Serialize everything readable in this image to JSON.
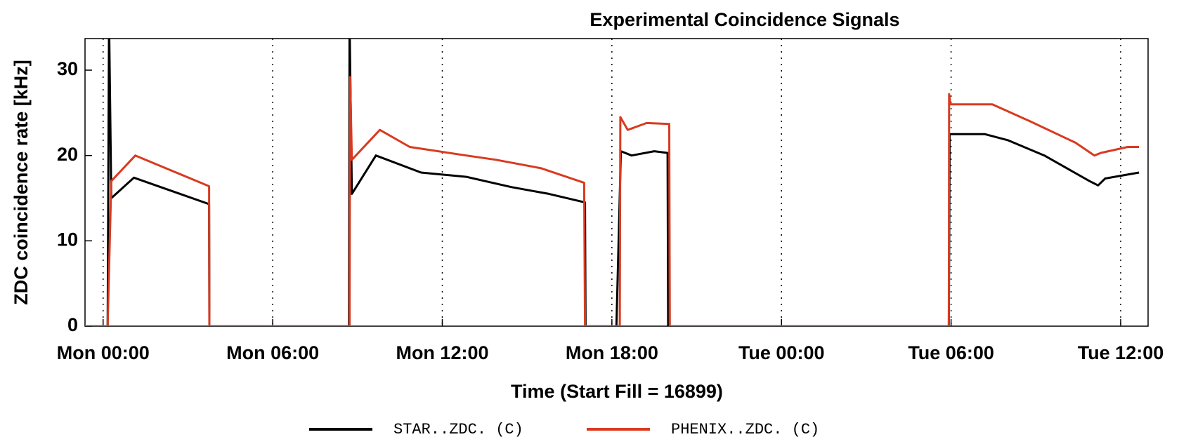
{
  "chart_data": {
    "type": "line",
    "title": "Experimental Coincidence Signals",
    "x_label": "Time (Start Fill = 16899)",
    "y_label": "ZDC coincidence rate [kHz]",
    "xlim": [
      -0.64,
      36.97
    ],
    "ylim": [
      0,
      33.7
    ],
    "xticks": [
      {
        "value": 0,
        "label": "Mon 00:00"
      },
      {
        "value": 6,
        "label": "Mon 06:00"
      },
      {
        "value": 12,
        "label": "Mon 12:00"
      },
      {
        "value": 18,
        "label": "Mon 18:00"
      },
      {
        "value": 24,
        "label": "Tue 00:00"
      },
      {
        "value": 30,
        "label": "Tue 06:00"
      },
      {
        "value": 36,
        "label": "Tue 12:00"
      }
    ],
    "yticks": [
      0,
      10,
      20,
      30
    ],
    "grid": "x-dotted",
    "legend": "bottom",
    "series": [
      {
        "name": "STAR..ZDC. (C)",
        "color": "#000000",
        "x": [
          -0.64,
          0.16,
          0.21,
          0.29,
          1.09,
          3.75,
          3.76,
          8.7,
          8.72,
          8.8,
          9.65,
          11.25,
          12.85,
          14.44,
          15.77,
          17.05,
          17.07,
          18.16,
          18.32,
          18.7,
          19.5,
          19.97,
          19.99,
          29.92,
          29.95,
          31.2,
          32.0,
          33.3,
          34.9,
          35.2,
          35.45,
          36.65
        ],
        "values": [
          0,
          0,
          36,
          15,
          17.4,
          14.3,
          0,
          0,
          36,
          15.5,
          20,
          18,
          17.5,
          16.3,
          15.5,
          14.5,
          0,
          0,
          20.5,
          20,
          20.5,
          20.3,
          0,
          0,
          22.5,
          22.5,
          21.8,
          20,
          17,
          16.5,
          17.3,
          18
        ]
      },
      {
        "name": "PHENIX..ZDC. (C)",
        "color": "#d93a1f",
        "x": [
          -0.64,
          0.16,
          0.29,
          1.14,
          3.75,
          3.76,
          8.72,
          8.74,
          8.8,
          9.79,
          10.85,
          12.85,
          13.9,
          15.5,
          17.02,
          17.05,
          18.28,
          18.3,
          18.56,
          19.23,
          20.03,
          20.05,
          29.92,
          29.93,
          29.98,
          31.46,
          32.8,
          34.4,
          35.07,
          35.3,
          36.25,
          36.65
        ],
        "values": [
          0,
          0,
          17,
          20,
          16.4,
          0,
          0,
          29.2,
          19.5,
          23,
          21,
          20,
          19.5,
          18.5,
          16.8,
          0,
          0,
          24.5,
          23,
          23.8,
          23.7,
          0,
          0,
          27.2,
          26,
          26,
          24,
          21.5,
          20,
          20.3,
          21,
          21
        ]
      }
    ]
  }
}
